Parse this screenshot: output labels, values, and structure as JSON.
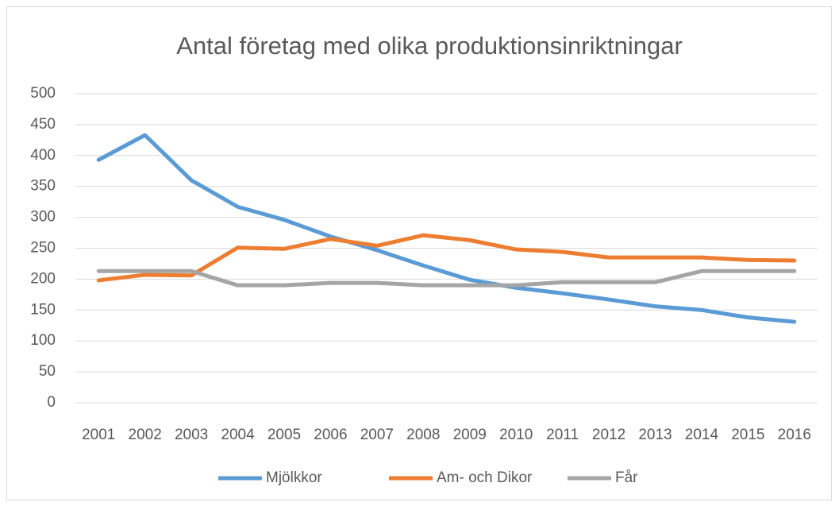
{
  "chart_data": {
    "type": "line",
    "title": "Antal företag med olika produktionsinriktningar",
    "categories": [
      "2001",
      "2002",
      "2003",
      "2004",
      "2005",
      "2006",
      "2007",
      "2008",
      "2009",
      "2010",
      "2011",
      "2012",
      "2013",
      "2014",
      "2015",
      "2016"
    ],
    "series": [
      {
        "name": "Mjölkkor",
        "color": "#5b9bd5",
        "values": [
          393,
          433,
          360,
          317,
          296,
          269,
          247,
          222,
          199,
          186,
          177,
          167,
          156,
          150,
          138,
          131
        ]
      },
      {
        "name": "Am- och Dikor",
        "color": "#ed7d31",
        "values": [
          198,
          207,
          206,
          251,
          249,
          265,
          254,
          271,
          263,
          248,
          244,
          235,
          235,
          235,
          231,
          230
        ]
      },
      {
        "name": "Får",
        "color": "#a5a5a5",
        "values": [
          213,
          213,
          213,
          190,
          190,
          194,
          194,
          190,
          190,
          190,
          195,
          195,
          195,
          213,
          213,
          213
        ]
      }
    ],
    "ylim": [
      0,
      500
    ],
    "yticks": [
      0,
      50,
      100,
      150,
      200,
      250,
      300,
      350,
      400,
      450,
      500
    ],
    "grid": true,
    "legend": "bottom"
  }
}
